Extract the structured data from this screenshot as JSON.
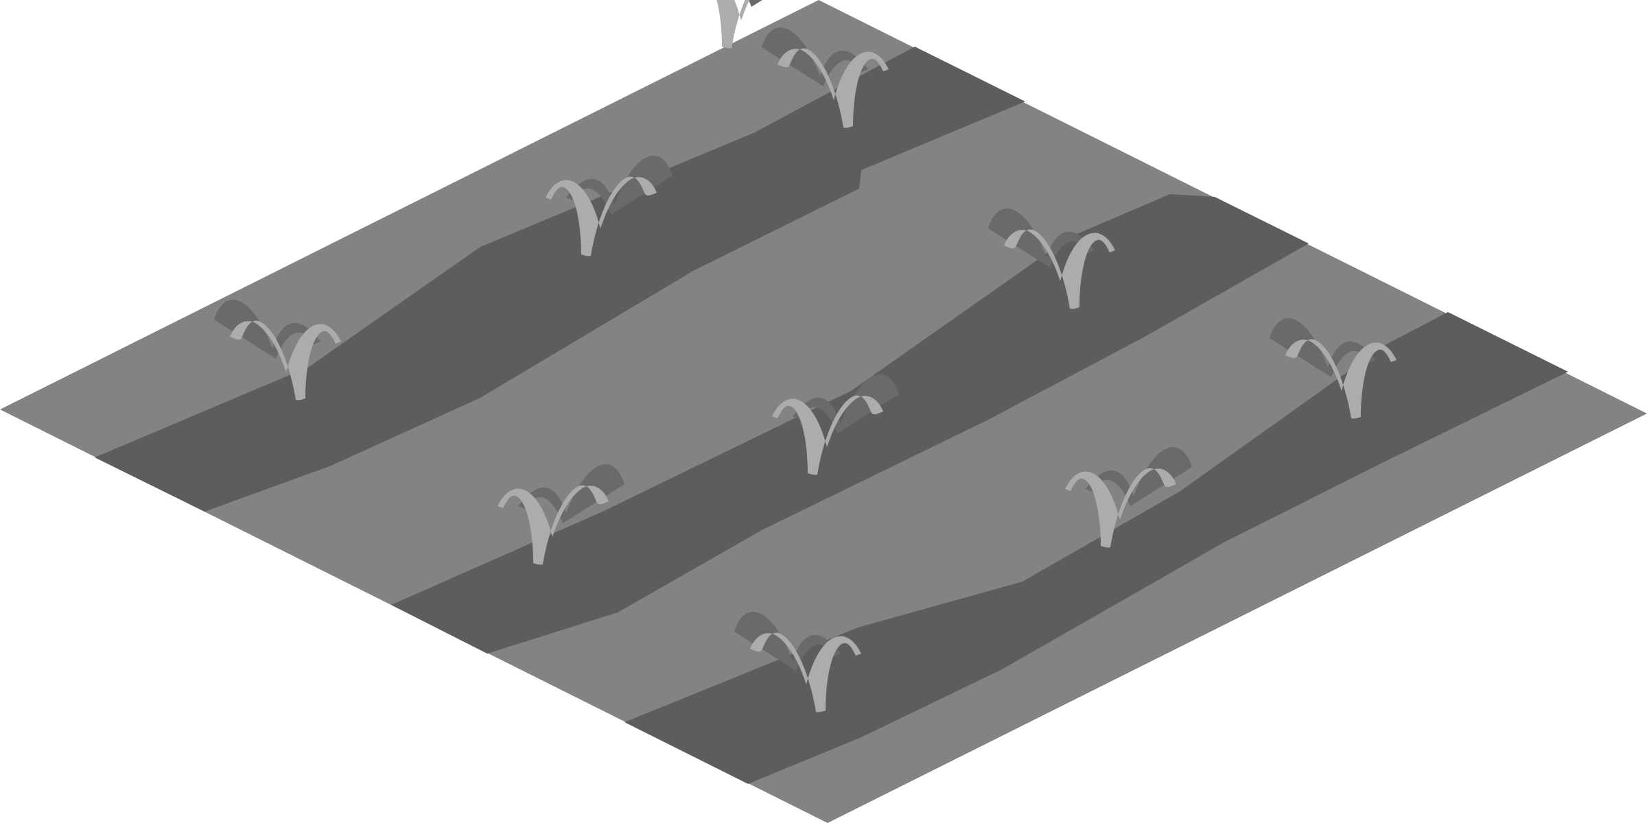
{
  "tile": {
    "kind": "isometric-terrain-tile",
    "ground_color": "#838383",
    "furrow_color": "#5d5d5d",
    "sprout_front_color": "#acacac",
    "sprout_back_color": "#6a6a6a",
    "furrow_count": 3,
    "sprout_count": 10,
    "icons": [
      "furrow-row",
      "sprout-icon"
    ]
  }
}
